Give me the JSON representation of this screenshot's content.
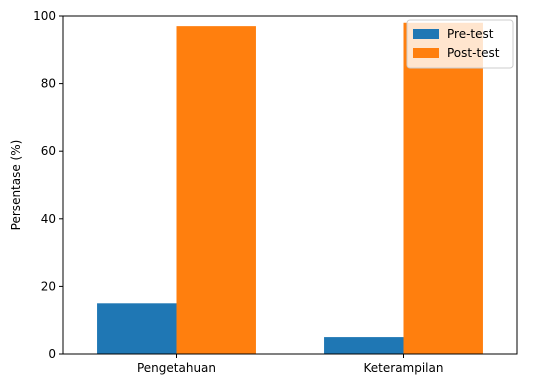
{
  "chart_data": {
    "type": "bar",
    "categories": [
      "Pengetahuan",
      "Keterampilan"
    ],
    "series": [
      {
        "name": "Pre-test",
        "values": [
          15,
          5
        ],
        "color": "#1f77b4"
      },
      {
        "name": "Post-test",
        "values": [
          97,
          98
        ],
        "color": "#ff7f0e"
      }
    ],
    "xlabel": "",
    "ylabel": "Persentase (%)",
    "ylim": [
      0,
      100
    ],
    "yticks": [
      0,
      20,
      40,
      60,
      80,
      100
    ],
    "grid": false,
    "legend_position": "top-right"
  }
}
